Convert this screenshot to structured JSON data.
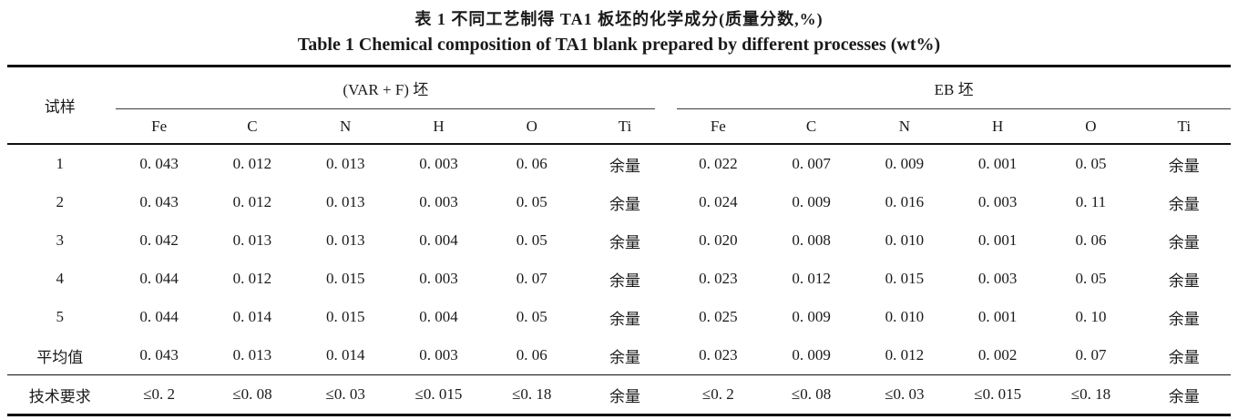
{
  "title": {
    "zh": "表 1  不同工艺制得 TA1 板坯的化学成分(质量分数,%)",
    "en": "Table 1  Chemical composition of TA1 blank prepared by different processes (wt%)"
  },
  "colors": {
    "text": "#1a1a1a",
    "rule_thick": "#111111",
    "rule_thin": "#3d3d3d",
    "background": "#ffffff"
  },
  "table": {
    "sample_header": "试样",
    "groups": [
      {
        "label": "(VAR + F) 坯",
        "columns": [
          "Fe",
          "C",
          "N",
          "H",
          "O",
          "Ti"
        ]
      },
      {
        "label": "EB 坯",
        "columns": [
          "Fe",
          "C",
          "N",
          "H",
          "O",
          "Ti"
        ]
      }
    ],
    "body": [
      [
        "1",
        "0. 043",
        "0. 012",
        "0. 013",
        "0. 003",
        "0. 06",
        "余量",
        "0. 022",
        "0. 007",
        "0. 009",
        "0. 001",
        "0. 05",
        "余量"
      ],
      [
        "2",
        "0. 043",
        "0. 012",
        "0. 013",
        "0. 003",
        "0. 05",
        "余量",
        "0. 024",
        "0. 009",
        "0. 016",
        "0. 003",
        "0. 11",
        "余量"
      ],
      [
        "3",
        "0. 042",
        "0. 013",
        "0. 013",
        "0. 004",
        "0. 05",
        "余量",
        "0. 020",
        "0. 008",
        "0. 010",
        "0. 001",
        "0. 06",
        "余量"
      ],
      [
        "4",
        "0. 044",
        "0. 012",
        "0. 015",
        "0. 003",
        "0. 07",
        "余量",
        "0. 023",
        "0. 012",
        "0. 015",
        "0. 003",
        "0. 05",
        "余量"
      ],
      [
        "5",
        "0. 044",
        "0. 014",
        "0. 015",
        "0. 004",
        "0. 05",
        "余量",
        "0. 025",
        "0. 009",
        "0. 010",
        "0. 001",
        "0. 10",
        "余量"
      ],
      [
        "平均值",
        "0. 043",
        "0. 013",
        "0. 014",
        "0. 003",
        "0. 06",
        "余量",
        "0. 023",
        "0. 009",
        "0. 012",
        "0. 002",
        "0. 07",
        "余量"
      ],
      [
        "技术要求",
        "≤0. 2",
        "≤0. 08",
        "≤0. 03",
        "≤0. 015",
        "≤0. 18",
        "余量",
        "≤0. 2",
        "≤0. 08",
        "≤0. 03",
        "≤0. 015",
        "≤0. 18",
        "余量"
      ]
    ]
  }
}
